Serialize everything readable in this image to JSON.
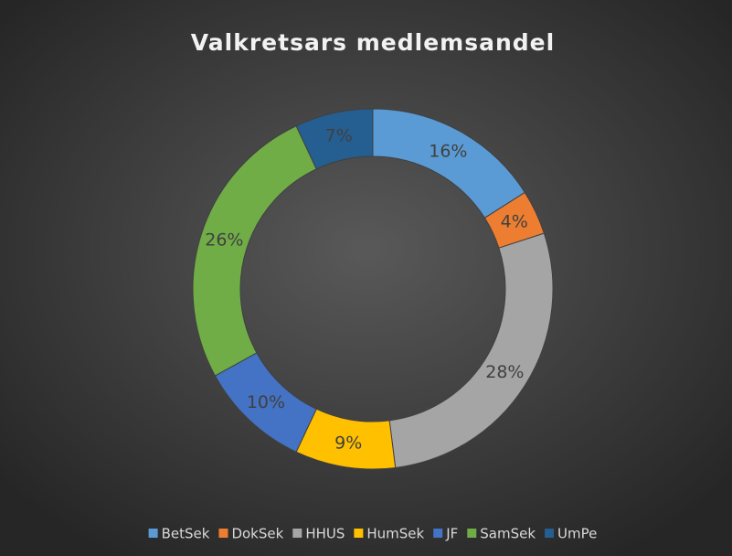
{
  "chart_data": {
    "type": "donut",
    "title": "Valkretsars medlemsandel",
    "categories": [
      "BetSek",
      "DokSek",
      "HHUS",
      "HumSek",
      "JF",
      "SamSek",
      "UmPe"
    ],
    "values": [
      16,
      4,
      28,
      9,
      10,
      26,
      7
    ],
    "value_labels": [
      "16%",
      "4%",
      "28%",
      "9%",
      "10%",
      "26%",
      "7%"
    ],
    "colors": [
      "#5b9bd5",
      "#ed7d31",
      "#a5a5a5",
      "#ffc000",
      "#4472c4",
      "#70ad47",
      "#255e91"
    ],
    "legend": "bottom"
  }
}
